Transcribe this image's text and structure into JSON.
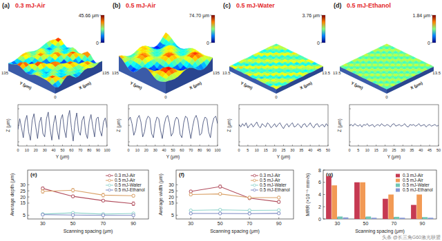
{
  "chart_data": [
    {
      "type": "surface_profile",
      "panel": "(a)",
      "title": "0.3 mJ-Air",
      "colorbar_range": [
        0,
        45.66
      ],
      "colorbar_ticks": [
        0,
        {
          "value": 45.66,
          "label": "45.66 μm"
        }
      ],
      "surface_labels": {
        "y_label": "Y (μm)",
        "x_label": "X (μm)",
        "corners": [
          "135",
          "0",
          "135"
        ]
      },
      "profile": {
        "type": "line",
        "color": "#34406e",
        "x_label": "Y (μm)",
        "y_label": "Z (μm)",
        "xlim": [
          0,
          100
        ],
        "xticks": [
          0,
          10,
          20,
          30,
          40,
          50,
          60,
          70,
          80,
          90,
          100
        ],
        "ylim": [
          -25,
          25
        ],
        "yticks": [
          -20,
          0,
          20
        ],
        "tick_labels": "x",
        "x": [
          0,
          2,
          4,
          6,
          8,
          10,
          12,
          14,
          16,
          18,
          20,
          22,
          24,
          26,
          28,
          30,
          32,
          34,
          36,
          38,
          40,
          42,
          44,
          46,
          48,
          50,
          52,
          54,
          56,
          58,
          60,
          62,
          64,
          66,
          68,
          70,
          72,
          74,
          76,
          78,
          80,
          82,
          84,
          86,
          88,
          90,
          92,
          94,
          96,
          98,
          100
        ],
        "values": [
          -5,
          8,
          -3,
          -15,
          5,
          12,
          -8,
          -18,
          6,
          14,
          -2,
          -16,
          3,
          10,
          -10,
          -14,
          8,
          16,
          -4,
          -18,
          2,
          12,
          -6,
          -17,
          7,
          13,
          -5,
          -15,
          9,
          18,
          -3,
          -19,
          4,
          15,
          -7,
          -12,
          6,
          11,
          -9,
          -16,
          5,
          13,
          -2,
          -14,
          8,
          10,
          -6,
          -13,
          4,
          9,
          -3
        ]
      }
    },
    {
      "type": "surface_profile",
      "panel": "(b)",
      "title": "0.5 mJ-Air",
      "colorbar_range": [
        0,
        74.7
      ],
      "colorbar_ticks": [
        0,
        {
          "value": 74.7,
          "label": "74.70 μm"
        }
      ],
      "surface_labels": {
        "y_label": "Y (μm)",
        "x_label": "X (μm)",
        "corners": [
          "135",
          "0",
          "135"
        ]
      },
      "profile": {
        "type": "line",
        "color": "#34406e",
        "x_label": "Y (μm)",
        "y_label": "Z (μm)",
        "xlim": [
          0,
          100
        ],
        "xticks": [
          0,
          10,
          20,
          30,
          40,
          50,
          60,
          70,
          80,
          90,
          100
        ],
        "ylim": [
          -25,
          25
        ],
        "yticks": [
          -20,
          0,
          20
        ],
        "tick_labels": "x",
        "x": [
          0,
          2,
          4,
          6,
          8,
          10,
          12,
          14,
          16,
          18,
          20,
          22,
          24,
          26,
          28,
          30,
          32,
          34,
          36,
          38,
          40,
          42,
          44,
          46,
          48,
          50,
          52,
          54,
          56,
          58,
          60,
          62,
          64,
          66,
          68,
          70,
          72,
          74,
          76,
          78,
          80,
          82,
          84,
          86,
          88,
          90,
          92,
          94,
          96,
          98,
          100
        ],
        "values": [
          6,
          10,
          2,
          -12,
          -6,
          8,
          12,
          4,
          -14,
          -8,
          6,
          11,
          9,
          -10,
          -15,
          2,
          10,
          8,
          -6,
          -16,
          0,
          9,
          12,
          3,
          -13,
          -9,
          5,
          10,
          7,
          -11,
          -15,
          3,
          11,
          9,
          -4,
          -16,
          -2,
          8,
          12,
          5,
          -12,
          -10,
          4,
          10,
          8,
          -8,
          -15,
          1,
          9,
          11,
          2
        ]
      }
    },
    {
      "type": "surface_profile",
      "panel": "(c)",
      "title": "0.5 mJ-Water",
      "colorbar_range": [
        0,
        3.76
      ],
      "colorbar_ticks": [
        0,
        {
          "value": 3.76,
          "label": "3.76 μm"
        }
      ],
      "surface_labels": {
        "y_label": "Y (μm)",
        "x_label": "X (μm)",
        "corners": [
          "13.5",
          "0",
          "13.5"
        ]
      },
      "profile": {
        "type": "line",
        "color": "#34406e",
        "x_label": "Y (μm)",
        "y_label": "Z (μm)",
        "xlim": [
          0,
          50
        ],
        "xticks": [
          0,
          5,
          10,
          15,
          20,
          25,
          30,
          35,
          40,
          45,
          50
        ],
        "ylim": [
          -25,
          25
        ],
        "yticks": [
          -20,
          0,
          20
        ],
        "tick_labels": "x",
        "x": [
          0,
          1,
          2,
          3,
          4,
          5,
          6,
          7,
          8,
          9,
          10,
          11,
          12,
          13,
          14,
          15,
          16,
          17,
          18,
          19,
          20,
          21,
          22,
          23,
          24,
          25,
          26,
          27,
          28,
          29,
          30,
          31,
          32,
          33,
          34,
          35,
          36,
          37,
          38,
          39,
          40,
          41,
          42,
          43,
          44,
          45,
          46,
          47,
          48,
          49,
          50
        ],
        "values": [
          1,
          -2,
          2,
          -1,
          3,
          -3,
          0,
          2,
          -2,
          1,
          4,
          -1,
          -3,
          2,
          0,
          -2,
          3,
          1,
          -3,
          -1,
          2,
          -2,
          1,
          3,
          -1,
          -4,
          0,
          2,
          -2,
          1,
          3,
          -2,
          -1,
          2,
          0,
          -3,
          1,
          2,
          -2,
          0,
          3,
          -1,
          -3,
          1,
          2,
          -2,
          0,
          1,
          -2,
          2,
          -1
        ]
      }
    },
    {
      "type": "surface_profile",
      "panel": "(d)",
      "title": "0.5 mJ-Ethanol",
      "colorbar_range": [
        0,
        1.84
      ],
      "colorbar_ticks": [
        0,
        {
          "value": 1.84,
          "label": "1.84 μm"
        }
      ],
      "surface_labels": {
        "y_label": "Y (μm)",
        "x_label": "X (μm)",
        "corners": [
          "13.5",
          "0",
          "13.5"
        ]
      },
      "profile": {
        "type": "line",
        "color": "#34406e",
        "x_label": "Y (μm)",
        "y_label": "Z (μm)",
        "xlim": [
          0,
          50
        ],
        "xticks": [
          0,
          5,
          10,
          15,
          20,
          25,
          30,
          35,
          40,
          45,
          50
        ],
        "ylim": [
          -25,
          25
        ],
        "yticks": [
          -20,
          0,
          20
        ],
        "tick_labels": "x",
        "x": [
          0,
          1,
          2,
          3,
          4,
          5,
          6,
          7,
          8,
          9,
          10,
          11,
          12,
          13,
          14,
          15,
          16,
          17,
          18,
          19,
          20,
          21,
          22,
          23,
          24,
          25,
          26,
          27,
          28,
          29,
          30,
          31,
          32,
          33,
          34,
          35,
          36,
          37,
          38,
          39,
          40,
          41,
          42,
          43,
          44,
          45,
          46,
          47,
          48,
          49,
          50
        ],
        "values": [
          0,
          1,
          -1,
          2,
          0,
          -1,
          1,
          -2,
          1,
          0,
          2,
          -1,
          0,
          1,
          -2,
          0,
          1,
          -1,
          2,
          0,
          -1,
          1,
          0,
          -2,
          1,
          2,
          -1,
          0,
          1,
          -1,
          0,
          2,
          -1,
          -2,
          1,
          0,
          1,
          -1,
          0,
          2,
          -1,
          0,
          1,
          -2,
          0,
          1,
          -1,
          0,
          1,
          -1,
          0
        ]
      }
    },
    {
      "type": "line",
      "panel": "(e)",
      "x_label": "Scanning spacing (μm)",
      "y_label": "Average depth (μm)",
      "x": [
        30,
        50,
        70,
        90
      ],
      "xlim": [
        20,
        100
      ],
      "xticks": [
        30,
        50,
        70,
        90
      ],
      "ylim": [
        2,
        42
      ],
      "yticks": [
        5,
        15,
        20,
        25,
        30
      ],
      "legend": "top-right",
      "marker": "circle",
      "series": [
        {
          "name": "0.3 mJ-Air",
          "color": "#b04a5a",
          "values": [
            27,
            20.5,
            17,
            14.5
          ],
          "errors": [
            1.2,
            1.0,
            0.8,
            1.5
          ]
        },
        {
          "name": "0.5 mJ-Air",
          "color": "#d9a066",
          "values": [
            24.5,
            25.5,
            21.5,
            21
          ],
          "errors": [
            1.5,
            1.5,
            1.5,
            1.0
          ]
        },
        {
          "name": "0.5 mJ-Water",
          "color": "#8fd3cb",
          "values": [
            6.0,
            7.0,
            6.0,
            6.5
          ],
          "errors": [
            0.4,
            0.4,
            0.3,
            0.3
          ]
        },
        {
          "name": "0.5 mJ-Ethanol",
          "color": "#7b88c2",
          "values": [
            5.5,
            5.2,
            5.0,
            5.0
          ],
          "errors": [
            0.3,
            0.3,
            0.3,
            0.3
          ]
        }
      ]
    },
    {
      "type": "line",
      "panel": "(f)",
      "x_label": "Scanning spacing (μm)",
      "y_label": "Average width (μm)",
      "x": [
        30,
        50,
        70,
        90
      ],
      "xlim": [
        20,
        100
      ],
      "xticks": [
        30,
        50,
        70,
        90
      ],
      "ylim": [
        2,
        42
      ],
      "yticks": [
        5,
        15,
        20,
        25,
        30
      ],
      "legend": "top-right",
      "marker": "circle",
      "series": [
        {
          "name": "0.3 mJ-Air",
          "color": "#b04a5a",
          "values": [
            24.5,
            28.5,
            19,
            16
          ],
          "errors": [
            1.0,
            1.2,
            1.0,
            1.0
          ]
        },
        {
          "name": "0.5 mJ-Air",
          "color": "#d9a066",
          "values": [
            22,
            22.5,
            19.5,
            19.5
          ],
          "errors": [
            1.0,
            0.8,
            1.0,
            1.0
          ]
        },
        {
          "name": "0.5 mJ-Water",
          "color": "#8fd3cb",
          "values": [
            9,
            9.5,
            9,
            9.2
          ],
          "errors": [
            0.3,
            0.3,
            0.3,
            0.3
          ]
        },
        {
          "name": "0.5 mJ-Ethanol",
          "color": "#7b88c2",
          "values": [
            6.5,
            6.5,
            6.4,
            6.6
          ],
          "errors": [
            0.3,
            0.3,
            0.3,
            0.3
          ]
        }
      ]
    },
    {
      "type": "bar",
      "panel": "(g)",
      "x_label": "Scanning spacing (μm)",
      "y_label": "MRR (×10⁻⁶ mm³/s)",
      "categories": [
        "30",
        "50",
        "70",
        "90"
      ],
      "ylim": [
        0,
        8
      ],
      "yticks": [
        0,
        2,
        4,
        6,
        8
      ],
      "legend": "top-right",
      "series": [
        {
          "name": "0.3 mJ-Air",
          "color": "#c63a52",
          "values": [
            7.0,
            6.0,
            3.3,
            2.3
          ]
        },
        {
          "name": "0.5 mJ-Air",
          "color": "#f29a55",
          "values": [
            5.5,
            6.0,
            4.0,
            4.0
          ]
        },
        {
          "name": "0.5 mJ-Water",
          "color": "#70c6b4",
          "values": [
            0.4,
            0.4,
            0.35,
            0.3
          ]
        },
        {
          "name": "0.5 mJ-Ethanol",
          "color": "#8798d4",
          "values": [
            0.25,
            0.2,
            0.2,
            0.2
          ]
        }
      ]
    }
  ],
  "watermark": "头条 @长三角G60激光联盟"
}
